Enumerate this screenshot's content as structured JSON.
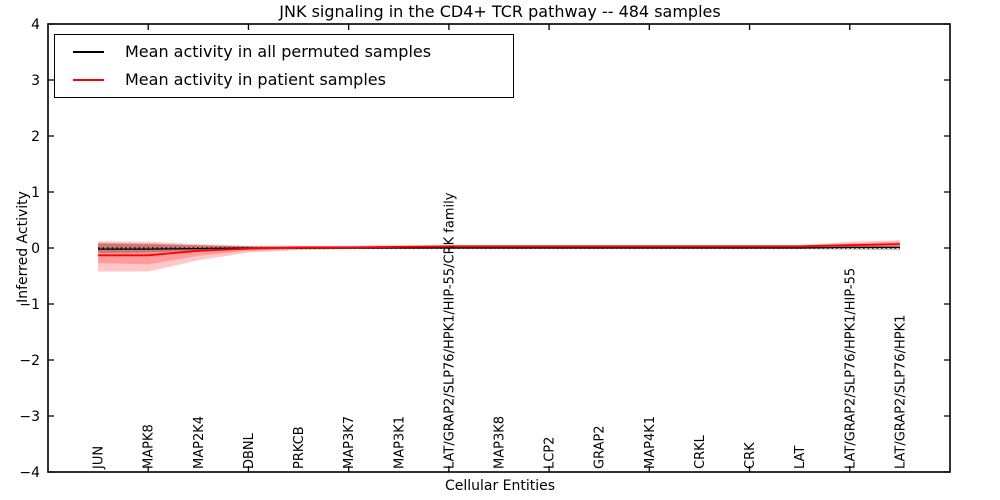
{
  "chart_data": {
    "type": "line",
    "title": "JNK signaling in the CD4+ TCR pathway -- 484 samples",
    "xlabel": "Cellular Entities",
    "ylabel": "Inferred Activity",
    "ylim": [
      -4,
      4
    ],
    "yticks": [
      4,
      3,
      2,
      1,
      0,
      -1,
      -2,
      -3,
      -4
    ],
    "ytick_labels": [
      "4",
      "3",
      "2",
      "1",
      "0",
      "−1",
      "−2",
      "−3",
      "−4"
    ],
    "xtick_indices": [
      1,
      3,
      5,
      7,
      9,
      11,
      13,
      15
    ],
    "categories": [
      "JUN",
      "MAPK8",
      "MAP2K4",
      "DBNL",
      "PRKCB",
      "MAP3K7",
      "MAP3K1",
      "LAT/GRAP2/SLP76/HPK1/HIP-55/CRK family",
      "MAP3K8",
      "LCP2",
      "GRAP2",
      "MAP4K1",
      "CRKL",
      "CRK",
      "LAT",
      "LAT/GRAP2/SLP76/HPK1/HIP-55",
      "LAT/GRAP2/SLP76/HPK1"
    ],
    "zero_line": {
      "y": 0,
      "style": "dotted",
      "color": "#000000"
    },
    "grid": false,
    "legend_position": "upper-left",
    "legend": {
      "entries": [
        {
          "label": "Mean activity in all permuted samples",
          "color": "#000000"
        },
        {
          "label": "Mean activity in patient samples",
          "color": "#ff0000"
        }
      ]
    },
    "series": [
      {
        "name": "Mean activity in all permuted samples",
        "color": "#000000",
        "line_width": 1.2,
        "values": [
          -0.02,
          -0.02,
          -0.01,
          0,
          0,
          0,
          0,
          0,
          0,
          0,
          0,
          0,
          0,
          0,
          0,
          0.01,
          0.01
        ],
        "band": {
          "color": "#000000",
          "opacity": 0.22,
          "upper": [
            0.08,
            0.07,
            0.05,
            0.03,
            0.02,
            0.02,
            0.02,
            0.02,
            0.02,
            0.02,
            0.02,
            0.02,
            0.02,
            0.02,
            0.02,
            0.03,
            0.04
          ],
          "lower": [
            -0.09,
            -0.08,
            -0.05,
            -0.03,
            -0.02,
            -0.02,
            -0.02,
            -0.02,
            -0.02,
            -0.02,
            -0.02,
            -0.02,
            -0.02,
            -0.02,
            -0.02,
            -0.03,
            -0.04
          ]
        }
      },
      {
        "name": "Mean activity in patient samples",
        "color": "#ff0000",
        "line_width": 1.8,
        "values": [
          -0.13,
          -0.13,
          -0.05,
          -0.01,
          0.01,
          0.01,
          0.02,
          0.03,
          0.03,
          0.03,
          0.03,
          0.03,
          0.03,
          0.03,
          0.03,
          0.05,
          0.07
        ],
        "band_inner": {
          "color": "#ff0000",
          "opacity": 0.22,
          "upper": [
            0.09,
            0.08,
            0.05,
            0.03,
            0.03,
            0.03,
            0.04,
            0.04,
            0.04,
            0.04,
            0.04,
            0.04,
            0.04,
            0.04,
            0.04,
            0.08,
            0.11
          ],
          "lower": [
            -0.27,
            -0.29,
            -0.14,
            -0.05,
            -0.02,
            -0.01,
            0,
            0,
            0.01,
            0.01,
            0.01,
            0.01,
            0.01,
            0.01,
            0.01,
            0.02,
            0.03
          ]
        },
        "band_outer": {
          "color": "#ff0000",
          "opacity": 0.22,
          "upper": [
            0.12,
            0.11,
            0.07,
            0.04,
            0.04,
            0.04,
            0.05,
            0.05,
            0.05,
            0.05,
            0.05,
            0.05,
            0.05,
            0.05,
            0.05,
            0.11,
            0.14
          ],
          "lower": [
            -0.42,
            -0.42,
            -0.22,
            -0.08,
            -0.04,
            -0.02,
            -0.01,
            -0.01,
            0,
            0,
            0,
            0,
            0,
            0,
            0,
            0.01,
            0.01
          ]
        }
      }
    ]
  }
}
